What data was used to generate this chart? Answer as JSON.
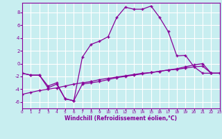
{
  "xlabel": "Windchill (Refroidissement éolien,°C)",
  "background_color": "#c8eef0",
  "grid_color": "#ffffff",
  "line_color": "#880099",
  "xlim": [
    0,
    23
  ],
  "ylim": [
    -7,
    9.5
  ],
  "xticks": [
    0,
    1,
    2,
    3,
    4,
    5,
    6,
    7,
    8,
    9,
    10,
    11,
    12,
    13,
    14,
    15,
    16,
    17,
    18,
    19,
    20,
    21,
    22,
    23
  ],
  "yticks": [
    -6,
    -4,
    -2,
    0,
    2,
    4,
    6,
    8
  ],
  "curve_x": [
    0,
    1,
    2,
    3,
    4,
    5,
    6,
    7,
    8,
    9,
    10,
    11,
    12,
    13,
    14,
    15,
    16,
    17,
    18,
    19,
    20,
    21,
    22,
    23
  ],
  "curve_y": [
    -1.5,
    -1.8,
    -1.8,
    -3.5,
    -3.0,
    -5.5,
    -5.8,
    1.0,
    3.0,
    3.5,
    4.2,
    7.2,
    8.8,
    8.5,
    8.5,
    9.0,
    7.2,
    5.0,
    1.2,
    1.3,
    -0.5,
    -1.5,
    -1.5,
    -1.5
  ],
  "lower_x": [
    0,
    1,
    2,
    3,
    4,
    5,
    6,
    7,
    8,
    9,
    10,
    11,
    12,
    13,
    14,
    15,
    16,
    17,
    18,
    19,
    20,
    21,
    22,
    23
  ],
  "lower_y": [
    -1.5,
    -1.8,
    -1.8,
    -3.8,
    -3.2,
    -5.5,
    -5.8,
    -3.2,
    -3.0,
    -2.8,
    -2.5,
    -2.2,
    -2.0,
    -1.8,
    -1.6,
    -1.4,
    -1.2,
    -1.0,
    -0.8,
    -0.5,
    -0.2,
    0.0,
    -1.5,
    -1.5
  ],
  "diag_x": [
    0,
    1,
    2,
    3,
    4,
    5,
    6,
    7,
    8,
    9,
    10,
    11,
    12,
    13,
    14,
    15,
    16,
    17,
    18,
    19,
    20,
    21,
    22,
    23
  ],
  "diag_y": [
    -4.8,
    -4.5,
    -4.2,
    -4.0,
    -3.8,
    -3.5,
    -3.2,
    -3.0,
    -2.8,
    -2.5,
    -2.3,
    -2.1,
    -1.9,
    -1.7,
    -1.5,
    -1.4,
    -1.2,
    -1.0,
    -0.9,
    -0.7,
    -0.5,
    -0.4,
    -1.5,
    -1.5
  ]
}
